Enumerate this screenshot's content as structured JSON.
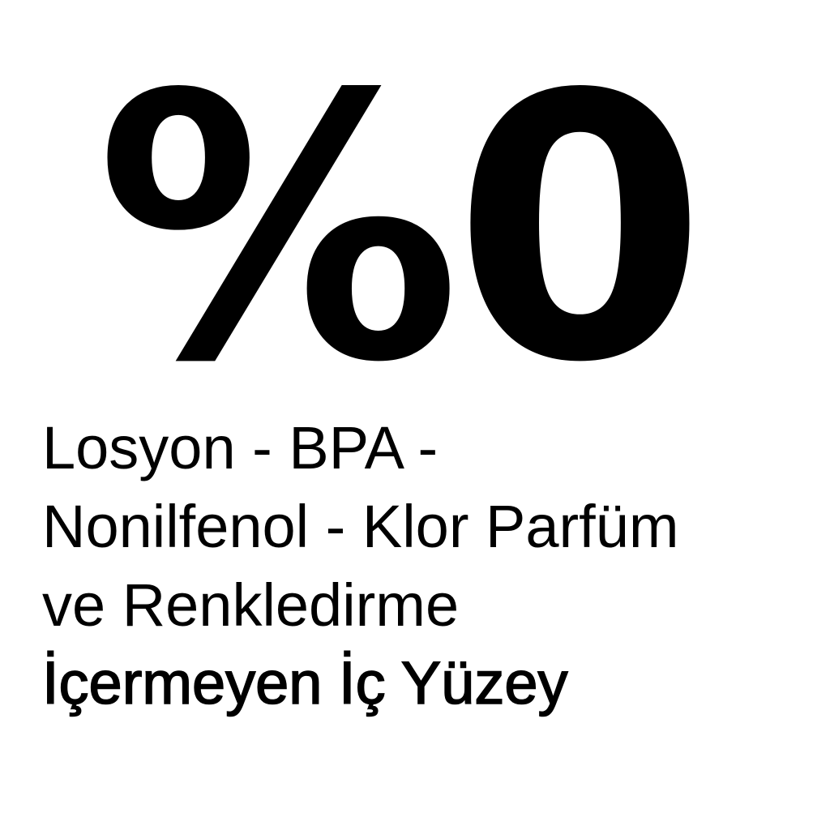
{
  "headline": "%0",
  "description_lines": [
    "Losyon - BPA -",
    "Nonilfenol - Klor Parfüm",
    "ve Renkledirme"
  ],
  "emphasis_line": "İçermeyen İç Yüzey",
  "colors": {
    "text": "#000000",
    "background": "#ffffff"
  }
}
